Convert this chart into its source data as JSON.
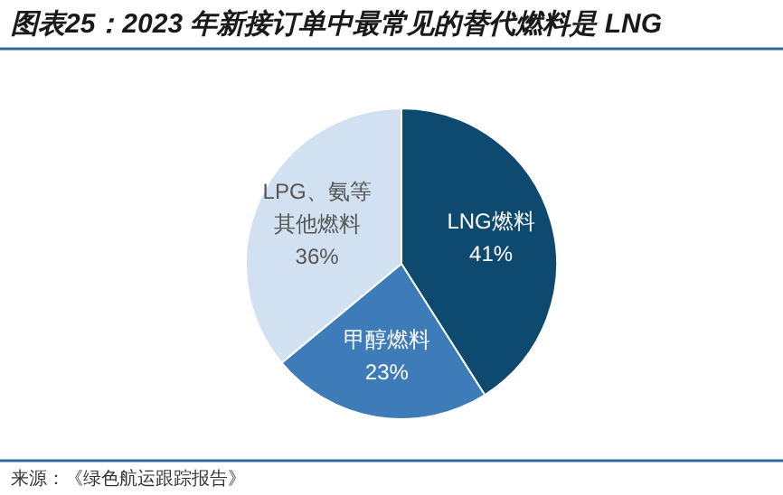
{
  "chart_data": {
    "type": "pie",
    "title": "图表25：2023 年新接订单中最常见的替代燃料是 LNG",
    "categories": [
      "LNG燃料",
      "甲醇燃料",
      "LPG、氨等其他燃料"
    ],
    "values": [
      41,
      23,
      36
    ],
    "colors": [
      "#0e4a6f",
      "#3e7bb9",
      "#d2e1f1"
    ],
    "value_labels": [
      "41%",
      "23%",
      "36%"
    ],
    "annotations": [
      "来源：《绿色航运跟踪报告》"
    ]
  }
}
